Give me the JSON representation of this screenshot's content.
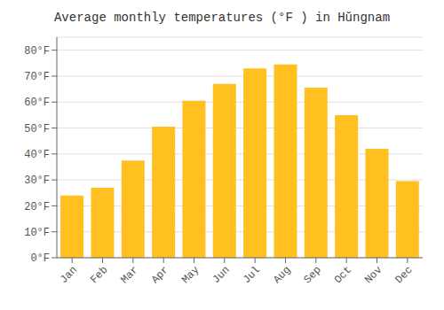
{
  "chart_data": {
    "type": "bar",
    "title": "Average monthly temperatures (°F ) in Hŭngnam",
    "categories": [
      "Jan",
      "Feb",
      "Mar",
      "Apr",
      "May",
      "Jun",
      "Jul",
      "Aug",
      "Sep",
      "Oct",
      "Nov",
      "Dec"
    ],
    "values": [
      24,
      27,
      37.5,
      50.5,
      60.5,
      67,
      73,
      74.5,
      65.5,
      55,
      42,
      29.5
    ],
    "color": "#FFC020",
    "ylim": [
      0,
      85
    ],
    "yticks": [
      {
        "value": 0,
        "label": "0°F"
      },
      {
        "value": 10,
        "label": "10°F"
      },
      {
        "value": 20,
        "label": "20°F"
      },
      {
        "value": 30,
        "label": "30°F"
      },
      {
        "value": 40,
        "label": "40°F"
      },
      {
        "value": 50,
        "label": "50°F"
      },
      {
        "value": 60,
        "label": "60°F"
      },
      {
        "value": 70,
        "label": "70°F"
      },
      {
        "value": 80,
        "label": "80°F"
      }
    ],
    "grid": true
  }
}
